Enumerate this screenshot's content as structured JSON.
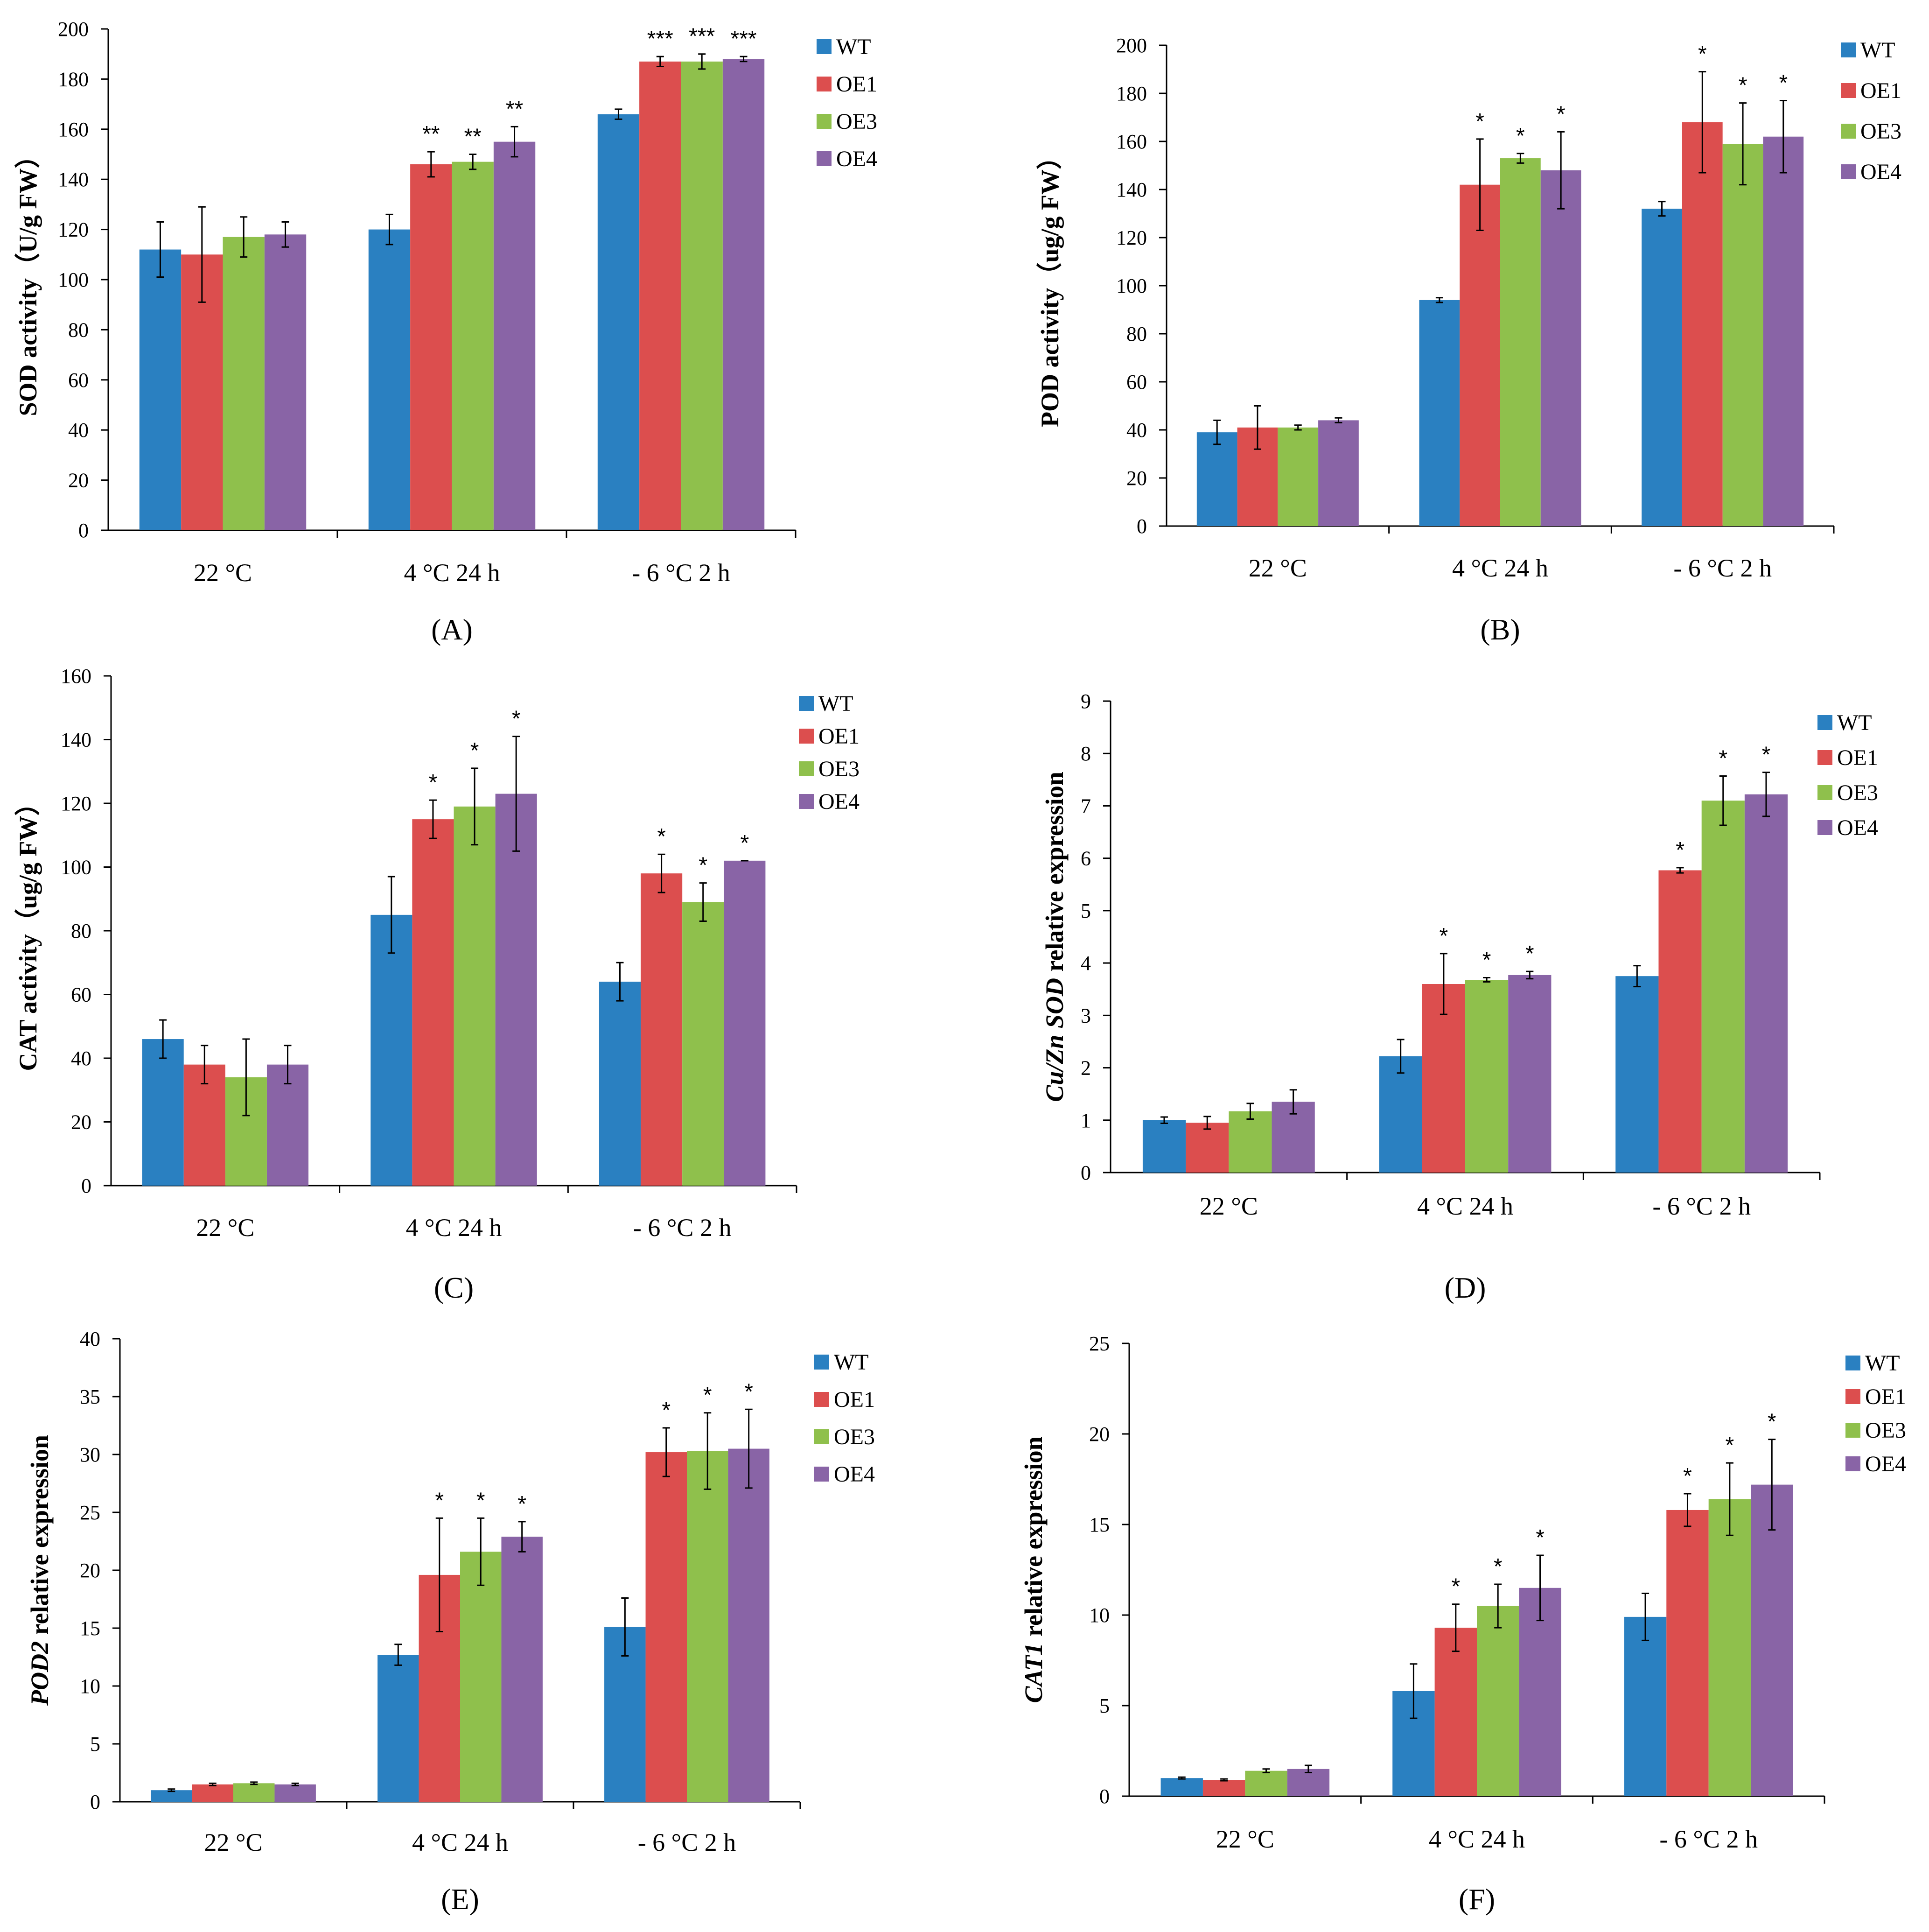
{
  "colors": {
    "WT": "#2a80c1",
    "OE1": "#dc4e4e",
    "OE3": "#8fc04c",
    "OE4": "#8964a6",
    "axis": "#000000"
  },
  "legend": [
    "WT",
    "OE1",
    "OE3",
    "OE4"
  ],
  "chart_data": [
    {
      "type": "bar",
      "panel": "A",
      "panel_label": "(A)",
      "ylabel_parts": [
        {
          "text": "SOD activity（U/g FW）",
          "italic": false
        }
      ],
      "ylim": [
        0,
        200
      ],
      "yticks": [
        0,
        20,
        40,
        60,
        80,
        100,
        120,
        140,
        160,
        180,
        200
      ],
      "categories": [
        "22 °C",
        "4 °C 24 h",
        "- 6 °C 2 h"
      ],
      "series": [
        {
          "name": "WT",
          "values": [
            112,
            120,
            166
          ],
          "errors": [
            11,
            6,
            2
          ],
          "sig": [
            "",
            "",
            ""
          ]
        },
        {
          "name": "OE1",
          "values": [
            110,
            146,
            187
          ],
          "errors": [
            19,
            5,
            2
          ],
          "sig": [
            "",
            "**",
            "***"
          ]
        },
        {
          "name": "OE3",
          "values": [
            117,
            147,
            187
          ],
          "errors": [
            8,
            3,
            3
          ],
          "sig": [
            "",
            "**",
            "***"
          ]
        },
        {
          "name": "OE4",
          "values": [
            118,
            155,
            188
          ],
          "errors": [
            5,
            6,
            1
          ],
          "sig": [
            "",
            "**",
            "***"
          ]
        }
      ]
    },
    {
      "type": "bar",
      "panel": "B",
      "panel_label": "(B)",
      "ylabel_parts": [
        {
          "text": "POD activity（ug/g FW）",
          "italic": false
        }
      ],
      "ylim": [
        0,
        200
      ],
      "yticks": [
        0,
        20,
        40,
        60,
        80,
        100,
        120,
        140,
        160,
        180,
        200
      ],
      "categories": [
        "22 °C",
        "4 °C 24 h",
        "- 6 °C 2 h"
      ],
      "series": [
        {
          "name": "WT",
          "values": [
            39,
            94,
            132
          ],
          "errors": [
            5,
            1,
            3
          ],
          "sig": [
            "",
            "",
            ""
          ]
        },
        {
          "name": "OE1",
          "values": [
            41,
            142,
            168
          ],
          "errors": [
            9,
            19,
            21
          ],
          "sig": [
            "",
            "*",
            "*"
          ]
        },
        {
          "name": "OE3",
          "values": [
            41,
            153,
            159
          ],
          "errors": [
            1,
            2,
            17
          ],
          "sig": [
            "",
            "*",
            "*"
          ]
        },
        {
          "name": "OE4",
          "values": [
            44,
            148,
            162
          ],
          "errors": [
            1,
            16,
            15
          ],
          "sig": [
            "",
            "*",
            "*"
          ]
        }
      ]
    },
    {
      "type": "bar",
      "panel": "C",
      "panel_label": "(C)",
      "ylabel_parts": [
        {
          "text": "CAT activity（ug/g FW）",
          "italic": false
        }
      ],
      "ylim": [
        0,
        160
      ],
      "yticks": [
        0,
        20,
        40,
        60,
        80,
        100,
        120,
        140,
        160
      ],
      "categories": [
        "22 °C",
        "4 °C 24 h",
        "- 6 °C 2 h"
      ],
      "series": [
        {
          "name": "WT",
          "values": [
            46,
            85,
            64
          ],
          "errors": [
            6,
            12,
            6
          ],
          "sig": [
            "",
            "",
            ""
          ]
        },
        {
          "name": "OE1",
          "values": [
            38,
            115,
            98
          ],
          "errors": [
            6,
            6,
            6
          ],
          "sig": [
            "",
            "*",
            "*"
          ]
        },
        {
          "name": "OE3",
          "values": [
            34,
            119,
            89
          ],
          "errors": [
            12,
            12,
            6
          ],
          "sig": [
            "",
            "*",
            "*"
          ]
        },
        {
          "name": "OE4",
          "values": [
            38,
            123,
            102
          ],
          "errors": [
            6,
            18,
            0
          ],
          "sig": [
            "",
            "*",
            "*"
          ]
        }
      ]
    },
    {
      "type": "bar",
      "panel": "D",
      "panel_label": "(D)",
      "ylabel_parts": [
        {
          "text": "Cu/Zn SOD",
          "italic": true
        },
        {
          "text": " relative expression",
          "italic": false
        }
      ],
      "ylim": [
        0,
        9
      ],
      "yticks": [
        0,
        1,
        2,
        3,
        4,
        5,
        6,
        7,
        8,
        9
      ],
      "categories": [
        "22 °C",
        "4 °C 24 h",
        "- 6 °C 2 h"
      ],
      "series": [
        {
          "name": "WT",
          "values": [
            1.0,
            2.22,
            3.75
          ],
          "errors": [
            0.06,
            0.32,
            0.2
          ],
          "sig": [
            "",
            "",
            ""
          ]
        },
        {
          "name": "OE1",
          "values": [
            0.95,
            3.6,
            5.77
          ],
          "errors": [
            0.12,
            0.58,
            0.05
          ],
          "sig": [
            "",
            "*",
            "*"
          ]
        },
        {
          "name": "OE3",
          "values": [
            1.17,
            3.68,
            7.1
          ],
          "errors": [
            0.15,
            0.04,
            0.47
          ],
          "sig": [
            "",
            "*",
            "*"
          ]
        },
        {
          "name": "OE4",
          "values": [
            1.35,
            3.77,
            7.22
          ],
          "errors": [
            0.23,
            0.07,
            0.42
          ],
          "sig": [
            "",
            "*",
            "*"
          ]
        }
      ]
    },
    {
      "type": "bar",
      "panel": "E",
      "panel_label": "(E)",
      "ylabel_parts": [
        {
          "text": "POD2",
          "italic": true
        },
        {
          "text": " relative expression",
          "italic": false
        }
      ],
      "ylim": [
        0,
        40
      ],
      "yticks": [
        0,
        5,
        10,
        15,
        20,
        25,
        30,
        35,
        40
      ],
      "categories": [
        "22 °C",
        "4 °C 24 h",
        "- 6 °C 2 h"
      ],
      "series": [
        {
          "name": "WT",
          "values": [
            1.0,
            12.7,
            15.1
          ],
          "errors": [
            0.1,
            0.9,
            2.5
          ],
          "sig": [
            "",
            "",
            ""
          ]
        },
        {
          "name": "OE1",
          "values": [
            1.5,
            19.6,
            30.2
          ],
          "errors": [
            0.1,
            4.9,
            2.1
          ],
          "sig": [
            "",
            "*",
            "*"
          ]
        },
        {
          "name": "OE3",
          "values": [
            1.6,
            21.6,
            30.3
          ],
          "errors": [
            0.1,
            2.9,
            3.3
          ],
          "sig": [
            "",
            "*",
            "*"
          ]
        },
        {
          "name": "OE4",
          "values": [
            1.5,
            22.9,
            30.5
          ],
          "errors": [
            0.1,
            1.3,
            3.4
          ],
          "sig": [
            "",
            "*",
            "*"
          ]
        }
      ]
    },
    {
      "type": "bar",
      "panel": "F",
      "panel_label": "(F)",
      "ylabel_parts": [
        {
          "text": "CAT1",
          "italic": true
        },
        {
          "text": " relative expression",
          "italic": false
        }
      ],
      "ylim": [
        0,
        25
      ],
      "yticks": [
        0,
        5,
        10,
        15,
        20,
        25
      ],
      "categories": [
        "22 °C",
        "4 °C 24 h",
        "- 6 °C 2 h"
      ],
      "series": [
        {
          "name": "WT",
          "values": [
            1.0,
            5.8,
            9.9
          ],
          "errors": [
            0.05,
            1.5,
            1.3
          ],
          "sig": [
            "",
            "",
            ""
          ]
        },
        {
          "name": "OE1",
          "values": [
            0.9,
            9.3,
            15.8
          ],
          "errors": [
            0.05,
            1.3,
            0.9
          ],
          "sig": [
            "",
            "*",
            "*"
          ]
        },
        {
          "name": "OE3",
          "values": [
            1.4,
            10.5,
            16.4
          ],
          "errors": [
            0.1,
            1.2,
            2.0
          ],
          "sig": [
            "",
            "*",
            "*"
          ]
        },
        {
          "name": "OE4",
          "values": [
            1.5,
            11.5,
            17.2
          ],
          "errors": [
            0.2,
            1.8,
            2.5
          ],
          "sig": [
            "",
            "*",
            "*"
          ]
        }
      ]
    }
  ]
}
